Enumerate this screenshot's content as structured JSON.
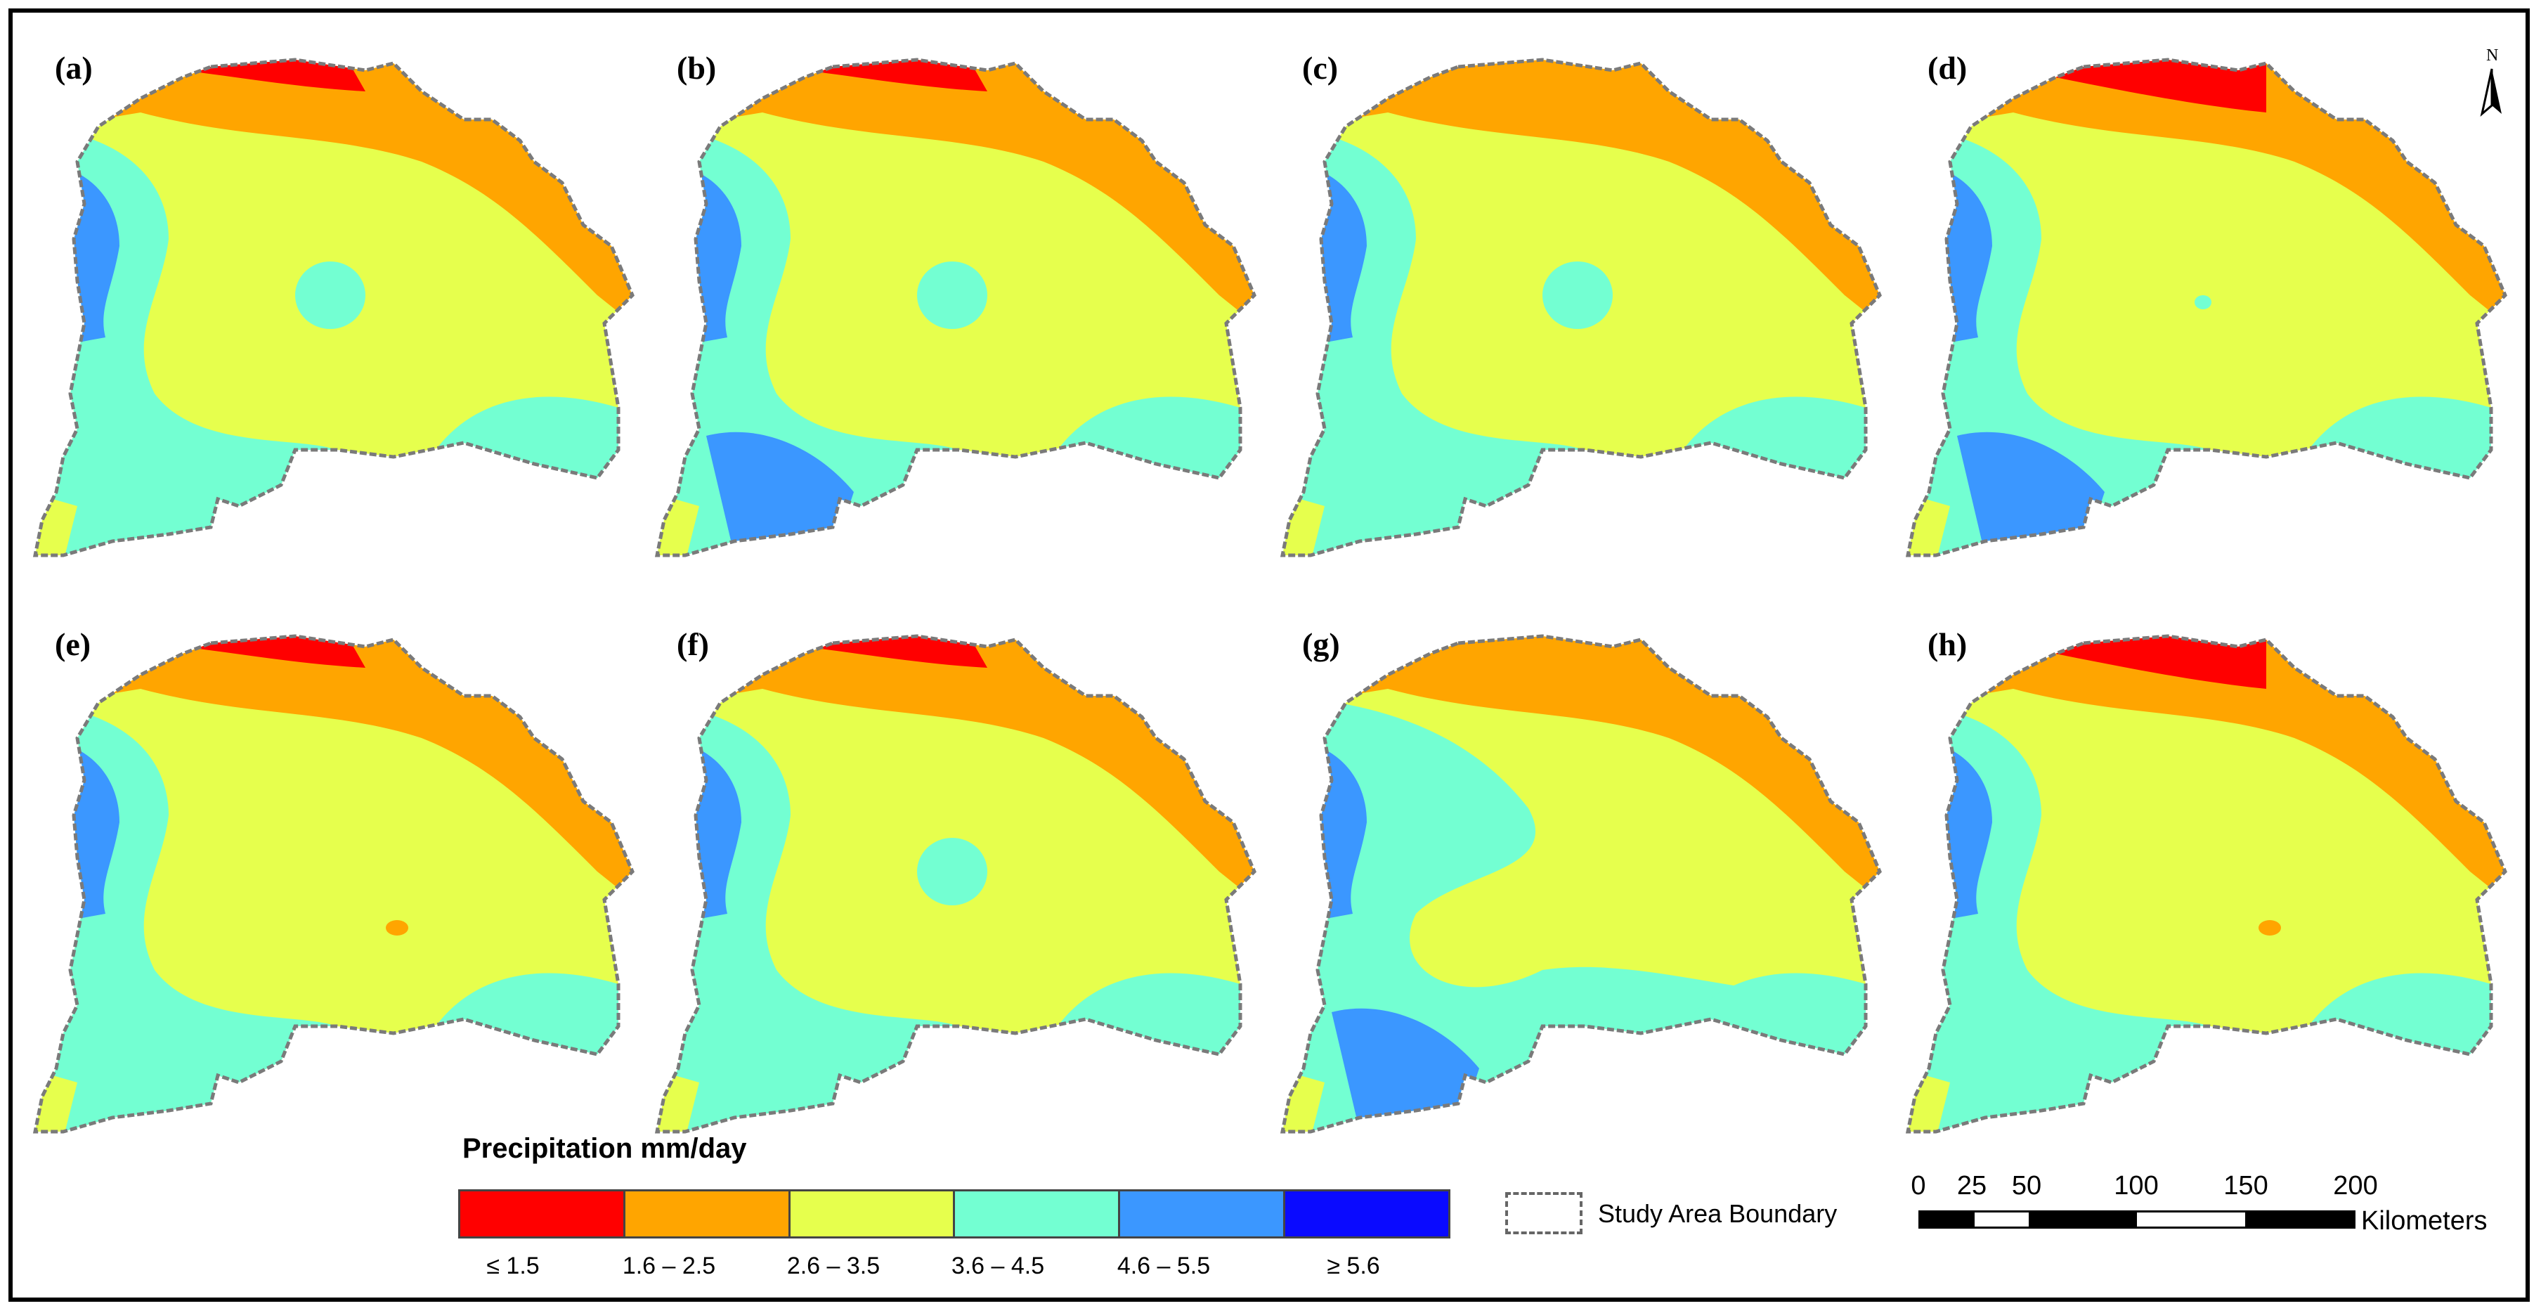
{
  "figure": {
    "panel_labels": [
      "(a)",
      "(b)",
      "(c)",
      "(d)",
      "(e)",
      "(f)",
      "(g)",
      "(h)"
    ]
  },
  "legend": {
    "title": "Precipitation mm/day",
    "classes": [
      {
        "label": "≤ 1.5",
        "color": "#ff0000"
      },
      {
        "label": "1.6 – 2.5",
        "color": "#ffa500"
      },
      {
        "label": "2.6 – 3.5",
        "color": "#e6ff4d"
      },
      {
        "label": "3.6 – 4.5",
        "color": "#73ffd2"
      },
      {
        "label": "4.6 – 5.5",
        "color": "#3b97ff"
      },
      {
        "label": "≥ 5.6",
        "color": "#0a0aff"
      }
    ],
    "boundary_label": "Study Area Boundary"
  },
  "scale_bar": {
    "ticks": [
      "0",
      "25",
      "50",
      "100",
      "150",
      "200"
    ],
    "unit": "Kilometers"
  },
  "north_arrow": {
    "label": "N"
  },
  "colors": {
    "boundary": "#7a7a7a",
    "frame": "#000000"
  }
}
